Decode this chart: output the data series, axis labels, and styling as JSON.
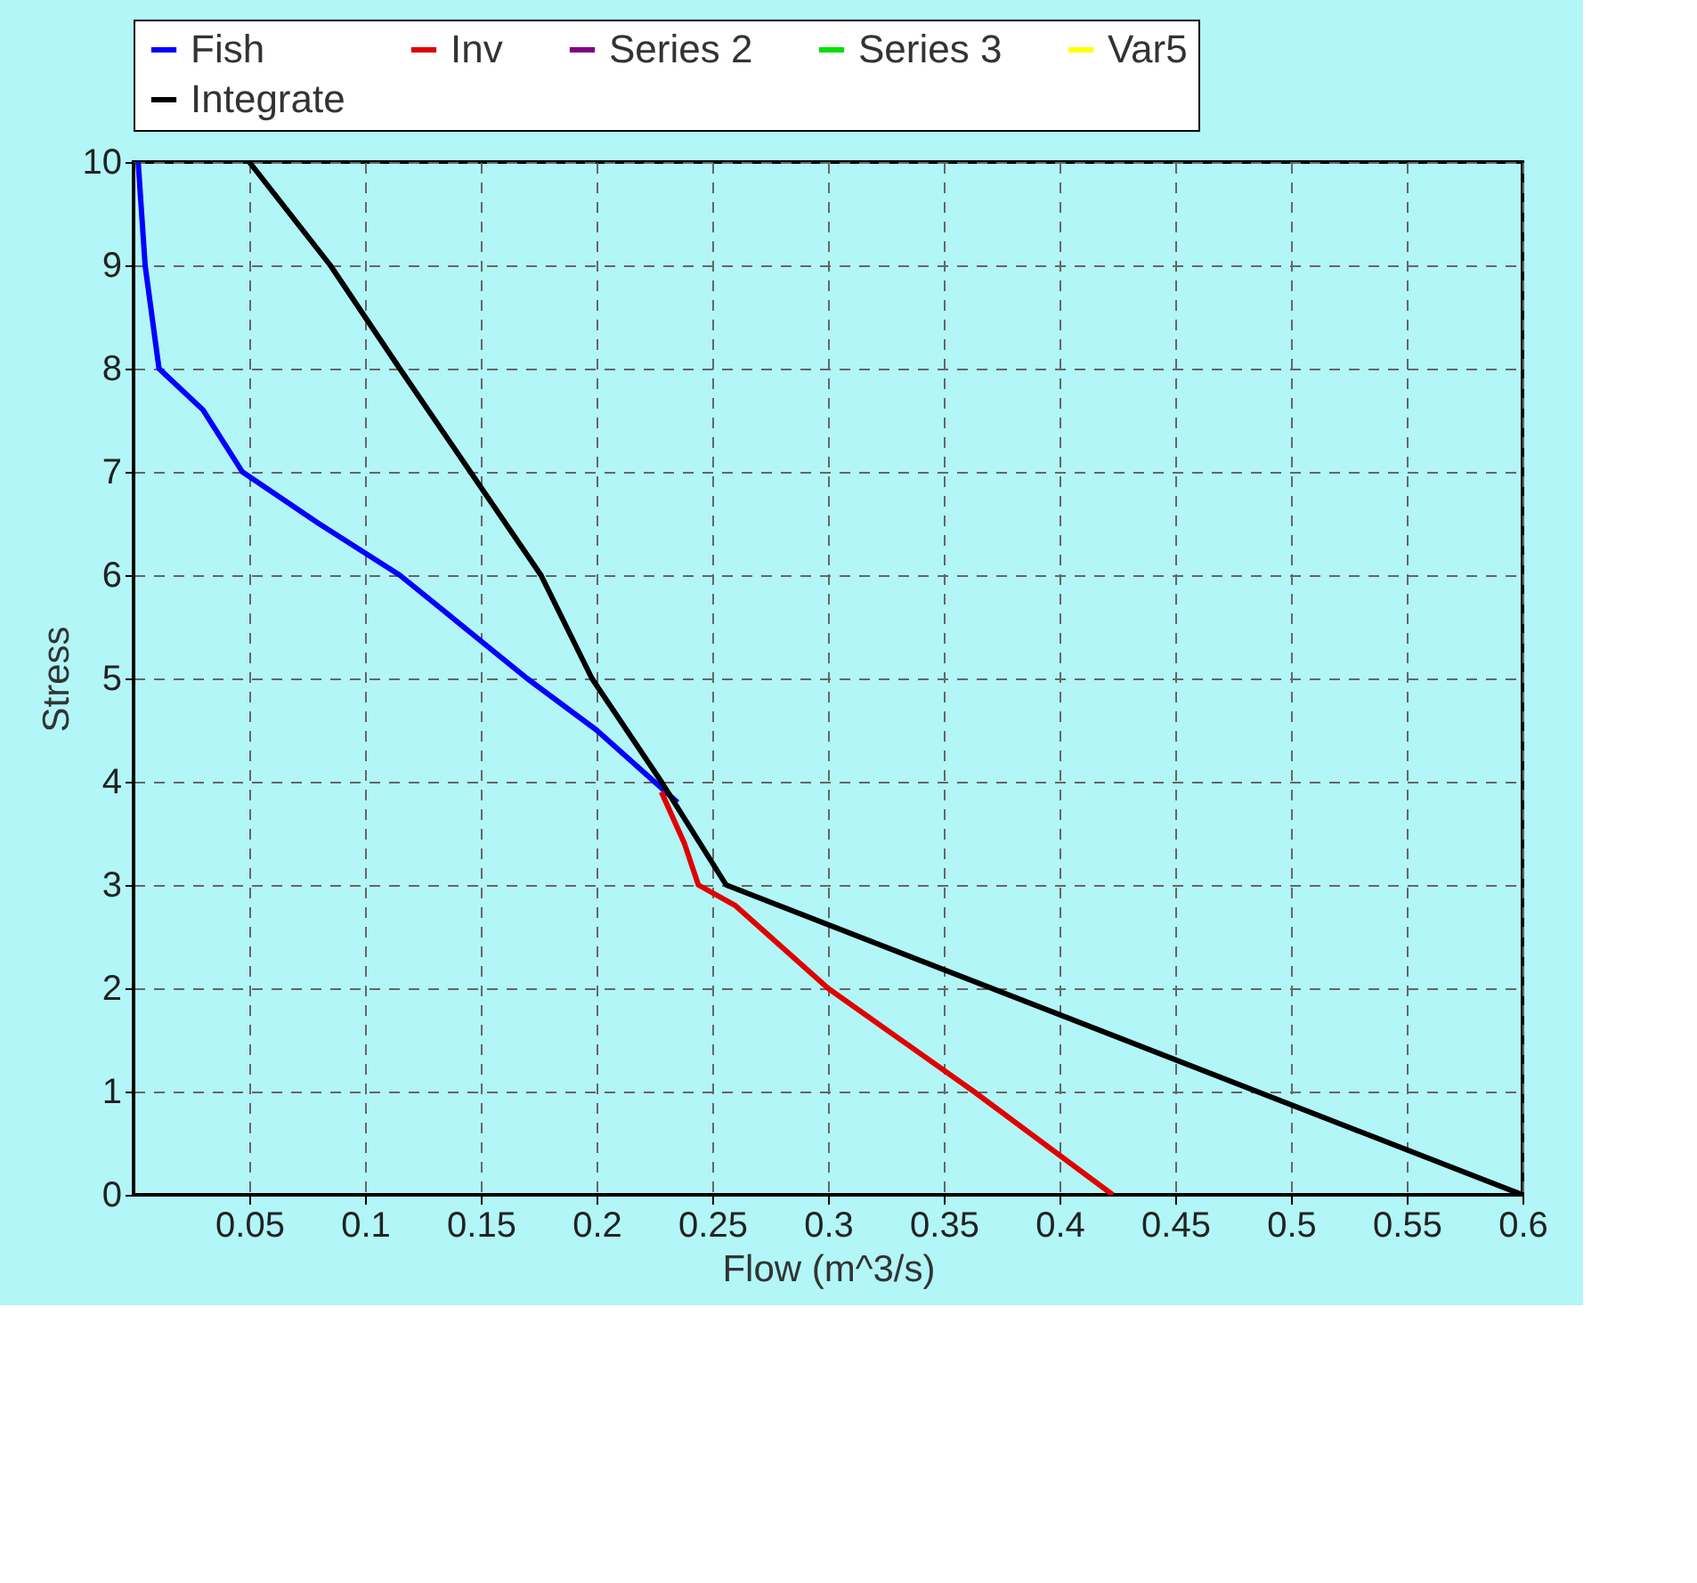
{
  "chart_data": {
    "type": "line",
    "xlabel": "Flow (m^3/s)",
    "ylabel": "Stress",
    "xlim": [
      0,
      0.6
    ],
    "ylim": [
      0,
      10
    ],
    "xticks": [
      0.05,
      0.1,
      0.15,
      0.2,
      0.25,
      0.3,
      0.35,
      0.4,
      0.45,
      0.5,
      0.55,
      0.6
    ],
    "yticks": [
      0,
      1,
      2,
      3,
      4,
      5,
      6,
      7,
      8,
      9,
      10
    ],
    "grid": true,
    "legend": "top",
    "marker": "none",
    "line_style": "solid",
    "series": [
      {
        "name": "Fish",
        "color": "#0000ff",
        "x": [
          0.002,
          0.005,
          0.011,
          0.03,
          0.047,
          0.08,
          0.115,
          0.17,
          0.2,
          0.235
        ],
        "values": [
          10,
          9,
          8,
          7.6,
          7,
          6.5,
          6,
          5,
          4.5,
          3.8
        ]
      },
      {
        "name": "Inv",
        "color": "#e00000",
        "x": [
          0.228,
          0.238,
          0.244,
          0.26,
          0.3,
          0.363,
          0.423
        ],
        "values": [
          3.9,
          3.4,
          3,
          2.8,
          2,
          1,
          0
        ]
      },
      {
        "name": "Series 2",
        "color": "#800080"
      },
      {
        "name": "Series 3",
        "color": "#00e000"
      },
      {
        "name": "Var5",
        "color": "#ffff00"
      },
      {
        "name": "Integrate",
        "color": "#000000",
        "x": [
          0.05,
          0.085,
          0.115,
          0.176,
          0.198,
          0.228,
          0.256,
          0.6
        ],
        "values": [
          10,
          9,
          8,
          6,
          5,
          4,
          3,
          0
        ]
      }
    ]
  }
}
